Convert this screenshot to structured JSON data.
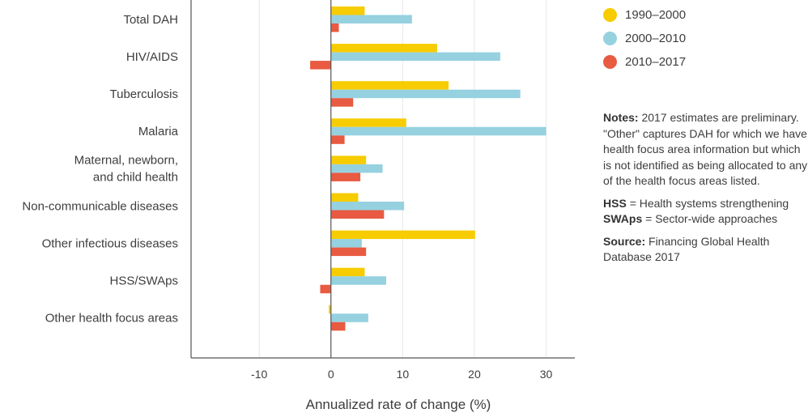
{
  "chart_data": {
    "type": "bar",
    "orientation": "horizontal",
    "categories": [
      [
        "Total DAH"
      ],
      [
        "HIV/AIDS"
      ],
      [
        "Tuberculosis"
      ],
      [
        "Malaria"
      ],
      [
        "Maternal, newborn,",
        "and child health"
      ],
      [
        "Non-communicable diseases"
      ],
      [
        "Other infectious diseases"
      ],
      [
        "HSS/SWAps"
      ],
      [
        "Other health focus areas"
      ]
    ],
    "series": [
      {
        "name": "1990–2000",
        "color": "#f7cc00",
        "values": [
          4.7,
          14.8,
          16.4,
          10.5,
          4.9,
          3.8,
          20.1,
          4.7,
          -0.3
        ]
      },
      {
        "name": "2000–2010",
        "color": "#96d1e0",
        "values": [
          11.3,
          23.6,
          26.4,
          30.0,
          7.2,
          10.2,
          4.3,
          7.7,
          5.2
        ]
      },
      {
        "name": "2010–2017",
        "color": "#e85a41",
        "values": [
          1.1,
          -2.9,
          3.1,
          1.9,
          4.1,
          7.4,
          4.9,
          -1.5,
          2.0
        ]
      }
    ],
    "xlabel": "Annualized rate of change (%)",
    "xlim": [
      -19.5,
      34
    ],
    "xticks": [
      -10,
      0,
      10,
      20,
      30
    ],
    "xtick_labels": [
      "-10",
      "0",
      "10",
      "20",
      "30"
    ],
    "grid": "vertical"
  },
  "notes": {
    "notes_label": "Notes:",
    "notes_text": "2017 estimates are preliminary. \"Other\" captures DAH for which we have health focus area information but which is not identified as being allocated to any of the health focus areas listed.",
    "hss_abbr": "HSS",
    "hss_text": "= Health systems strengthening",
    "swaps_abbr": "SWAps",
    "swaps_text": "= Sector-wide approaches",
    "source_label": "Source:",
    "source_text": "Financing Global Health Database 2017"
  }
}
